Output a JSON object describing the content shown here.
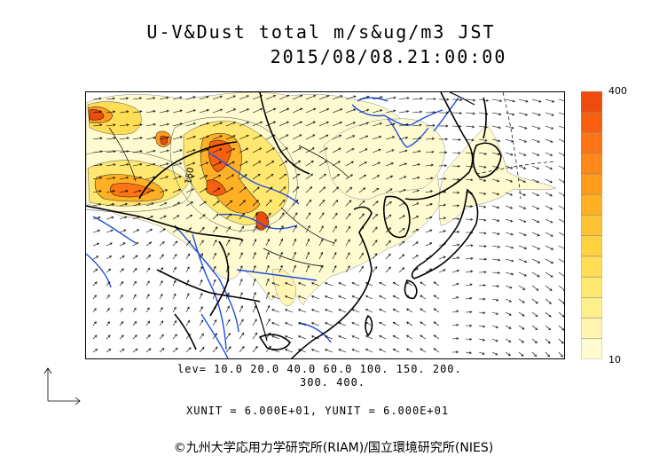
{
  "title": {
    "line1": "U-V&Dust total m/s&ug/m3 JST",
    "line2": "2015/08/08.21:00:00"
  },
  "legend": {
    "max_label": "400",
    "min_label": "10",
    "colors": [
      "#fffbd0",
      "#fff5b0",
      "#ffef8a",
      "#ffe770",
      "#ffdd55",
      "#ffd040",
      "#ffc232",
      "#ffb025",
      "#ff9c1c",
      "#ff8818",
      "#ff7414",
      "#f86010",
      "#ee4c0c"
    ]
  },
  "contour_levels": {
    "line1": "lev= 10.0 20.0 40.0 60.0 100. 150. 200.",
    "line2": "300. 400."
  },
  "units": {
    "text": "XUNIT = 6.000E+01, YUNIT = 6.000E+01"
  },
  "map": {
    "contour_label": "150",
    "coast_color": "#000000",
    "river_color": "#1f4fe0",
    "wind_color": "#000000"
  },
  "credit": "©九州大学応用力学研究所(RIAM)/国立環境研究所(NIES)"
}
